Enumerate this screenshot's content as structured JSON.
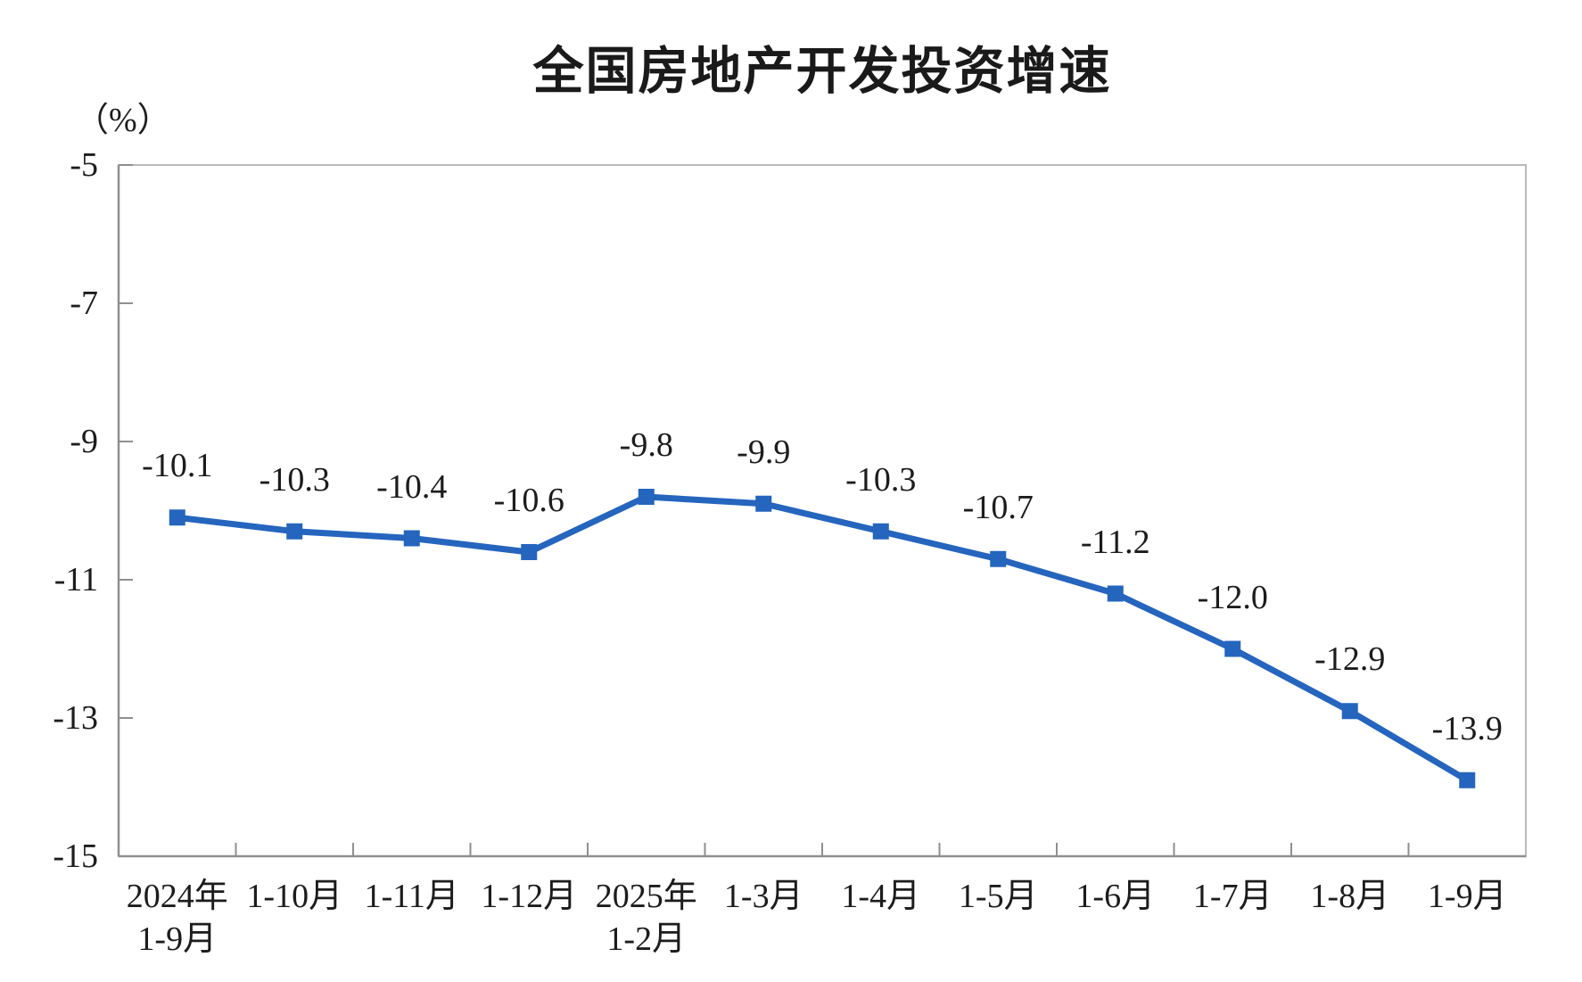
{
  "chart_data": {
    "type": "line",
    "title": "全国房地产开发投资增速",
    "unit_label": "（%）",
    "categories": [
      [
        "2024年",
        "1-9月"
      ],
      [
        "1-10月"
      ],
      [
        "1-11月"
      ],
      [
        "1-12月"
      ],
      [
        "2025年",
        "1-2月"
      ],
      [
        "1-3月"
      ],
      [
        "1-4月"
      ],
      [
        "1-5月"
      ],
      [
        "1-6月"
      ],
      [
        "1-7月"
      ],
      [
        "1-8月"
      ],
      [
        "1-9月"
      ]
    ],
    "values": [
      -10.1,
      -10.3,
      -10.4,
      -10.6,
      -9.8,
      -9.9,
      -10.3,
      -10.7,
      -11.2,
      -12.0,
      -12.9,
      -13.9
    ],
    "value_labels": [
      "-10.1",
      "-10.3",
      "-10.4",
      "-10.6",
      "-9.8",
      "-9.9",
      "-10.3",
      "-10.7",
      "-11.2",
      "-12.0",
      "-12.9",
      "-13.9"
    ],
    "y_ticks": [
      -5,
      -7,
      -9,
      -11,
      -13,
      -15
    ],
    "y_tick_labels": [
      "-5",
      "-7",
      "-9",
      "-11",
      "-13",
      "-15"
    ],
    "ylim": [
      -15,
      -5
    ],
    "grid": false,
    "legend": false,
    "marker": "square",
    "line_color": "#2565be",
    "marker_color": "#2565be",
    "border_color": "#b9b9b9",
    "axis_color": "#8f8f8f",
    "text_color": "#1c1c1c"
  }
}
